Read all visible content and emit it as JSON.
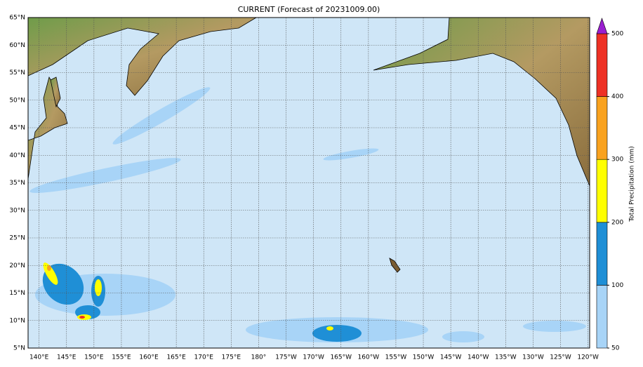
{
  "map": {
    "title": "CURRENT (Forecast of 20231009.00)",
    "lat_ticks": [
      {
        "value": 65,
        "label": "65°N"
      },
      {
        "value": 60,
        "label": "60°N"
      },
      {
        "value": 55,
        "label": "55°N"
      },
      {
        "value": 50,
        "label": "50°N"
      },
      {
        "value": 45,
        "label": "45°N"
      },
      {
        "value": 40,
        "label": "40°N"
      },
      {
        "value": 35,
        "label": "35°N"
      },
      {
        "value": 30,
        "label": "30°N"
      },
      {
        "value": 25,
        "label": "25°N"
      },
      {
        "value": 20,
        "label": "20°N"
      },
      {
        "value": 15,
        "label": "15°N"
      },
      {
        "value": 10,
        "label": "10°N"
      },
      {
        "value": 5,
        "label": "5°N"
      }
    ],
    "lon_ticks": [
      {
        "value": 140,
        "label": "140°E"
      },
      {
        "value": 145,
        "label": "145°E"
      },
      {
        "value": 150,
        "label": "150°E"
      },
      {
        "value": 155,
        "label": "155°E"
      },
      {
        "value": 160,
        "label": "160°E"
      },
      {
        "value": 165,
        "label": "165°E"
      },
      {
        "value": 170,
        "label": "170°E"
      },
      {
        "value": 175,
        "label": "175°E"
      },
      {
        "value": 180,
        "label": "180°"
      },
      {
        "value": -175,
        "label": "175°W"
      },
      {
        "value": -170,
        "label": "170°W"
      },
      {
        "value": -165,
        "label": "165°W"
      },
      {
        "value": -160,
        "label": "160°W"
      },
      {
        "value": -155,
        "label": "155°W"
      },
      {
        "value": -150,
        "label": "150°W"
      },
      {
        "value": -145,
        "label": "145°W"
      },
      {
        "value": -140,
        "label": "140°W"
      },
      {
        "value": -135,
        "label": "135°W"
      },
      {
        "value": -130,
        "label": "130°W"
      },
      {
        "value": -125,
        "label": "125°W"
      },
      {
        "value": -120,
        "label": "120°W"
      }
    ],
    "colorbar": {
      "label": "Total Precipitation (mm)",
      "ticks": [
        50,
        100,
        200,
        300,
        400,
        500
      ],
      "colors": [
        "#a8d4f7",
        "#1f8fd6",
        "#ffff00",
        "#f9a21f",
        "#ee3125"
      ],
      "extend_color": "#9a1fd0"
    }
  }
}
